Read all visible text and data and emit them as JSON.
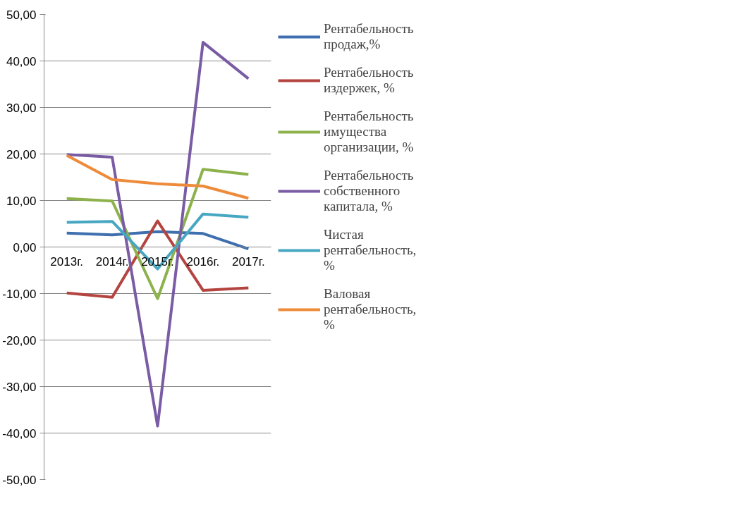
{
  "chart_data": {
    "type": "line",
    "categories": [
      "2013г.",
      "2014г.",
      "2015г.",
      "2016г.",
      "2017г."
    ],
    "ylim": [
      -50,
      50
    ],
    "yticks": [
      {
        "value": -50,
        "label": "-50,00"
      },
      {
        "value": -40,
        "label": "-40,00"
      },
      {
        "value": -30,
        "label": "-30,00"
      },
      {
        "value": -20,
        "label": "-20,00"
      },
      {
        "value": -10,
        "label": "-10,00"
      },
      {
        "value": 0,
        "label": "0,00"
      },
      {
        "value": 10,
        "label": "10,00"
      },
      {
        "value": 20,
        "label": "20,00"
      },
      {
        "value": 30,
        "label": "30,00"
      },
      {
        "value": 40,
        "label": "40,00"
      },
      {
        "value": 50,
        "label": "50,00"
      }
    ],
    "grid": "y",
    "legend": "right",
    "marker": "none",
    "line_style": "solid",
    "series": [
      {
        "name": "Рентабельность продаж,%",
        "color": "#3f6fae",
        "values": [
          3.0,
          2.6,
          3.3,
          2.9,
          -0.4
        ]
      },
      {
        "name": "Рентабельность издержек, %",
        "color": "#b4443f",
        "values": [
          -9.9,
          -10.8,
          5.6,
          -9.3,
          -8.8
        ]
      },
      {
        "name": "Рентабельность имущества организации, %",
        "color": "#8db24c",
        "values": [
          10.4,
          9.9,
          -11.1,
          16.7,
          15.6
        ]
      },
      {
        "name": "Рентабельность собственного капитала, %",
        "color": "#7a5ca5",
        "values": [
          19.9,
          19.3,
          -38.5,
          44.0,
          36.2
        ]
      },
      {
        "name": "Чистая рентабельность, %",
        "color": "#47a7c2",
        "values": [
          5.3,
          5.5,
          -4.7,
          7.1,
          6.4
        ]
      },
      {
        "name": "Валовая рентабельность, %",
        "color": "#ee8b3a",
        "values": [
          19.7,
          14.5,
          13.6,
          13.1,
          10.5
        ]
      }
    ]
  }
}
